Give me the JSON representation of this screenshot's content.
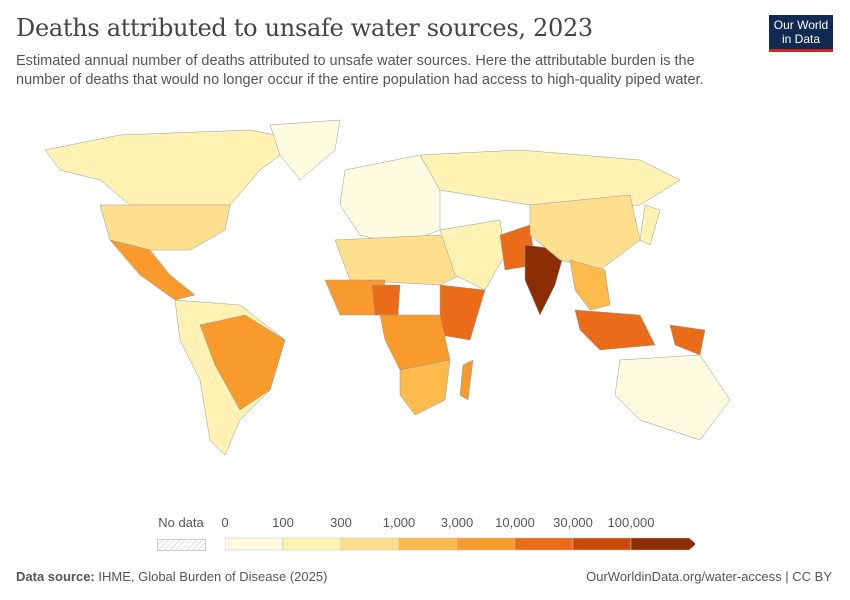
{
  "header": {
    "title": "Deaths attributed to unsafe water sources, 2023",
    "subtitle": "Estimated annual number of deaths attributed to unsafe water sources. Here the attributable burden is the number of deaths that would no longer occur if the entire population had access to high-quality piped water.",
    "logo": "Our World in Data"
  },
  "legend": {
    "no_data": "No data",
    "ticks": [
      "0",
      "100",
      "300",
      "1,000",
      "3,000",
      "10,000",
      "30,000",
      "100,000"
    ],
    "colors": [
      "#fffbe0",
      "#fff2b3",
      "#fedf8e",
      "#fdbb4b",
      "#f99a2c",
      "#ea6c18",
      "#c94a06",
      "#8c2d04"
    ],
    "no_data_color": "#eeeeee"
  },
  "map": {
    "regions": [
      {
        "name": "north-america",
        "level": 1
      },
      {
        "name": "usa",
        "level": 2
      },
      {
        "name": "mexico-central-america",
        "level": 4
      },
      {
        "name": "south-america",
        "level": 1
      },
      {
        "name": "brazil",
        "level": 4
      },
      {
        "name": "greenland",
        "level": 0
      },
      {
        "name": "europe",
        "level": 0
      },
      {
        "name": "russia",
        "level": 1
      },
      {
        "name": "north-africa",
        "level": 2
      },
      {
        "name": "west-africa",
        "level": 4
      },
      {
        "name": "nigeria",
        "level": 5
      },
      {
        "name": "east-africa",
        "level": 5
      },
      {
        "name": "central-africa",
        "level": 4
      },
      {
        "name": "southern-africa",
        "level": 3
      },
      {
        "name": "madagascar",
        "level": 4
      },
      {
        "name": "middle-east",
        "level": 1
      },
      {
        "name": "pakistan",
        "level": 5
      },
      {
        "name": "india",
        "level": 7
      },
      {
        "name": "china",
        "level": 2
      },
      {
        "name": "southeast-asia",
        "level": 3
      },
      {
        "name": "indonesia",
        "level": 5
      },
      {
        "name": "papua-new-guinea",
        "level": 5
      },
      {
        "name": "australia",
        "level": 0
      },
      {
        "name": "japan",
        "level": 1
      }
    ]
  },
  "footer": {
    "source_label": "Data source:",
    "source": "IHME, Global Burden of Disease (2025)",
    "link": "OurWorldinData.org/water-access | CC BY"
  }
}
